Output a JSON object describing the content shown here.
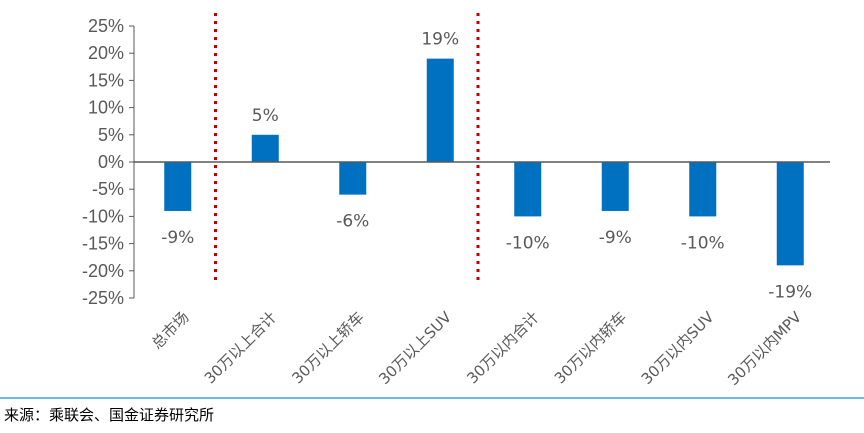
{
  "chart_data": {
    "type": "bar",
    "categories": [
      "总市场",
      "30万以上合计",
      "30万以上轿车",
      "30万以上SUV",
      "30万以内合计",
      "30万以内轿车",
      "30万以内SUV",
      "30万以内MPV"
    ],
    "series": [
      {
        "values": [
          -9,
          5,
          -6,
          19,
          -10,
          -9,
          -10,
          -19
        ],
        "labels": [
          "-9%",
          "5%",
          "-6%",
          "19%",
          "-10%",
          "-9%",
          "-10%",
          "-19%"
        ]
      }
    ],
    "ylim": [
      -25,
      25
    ],
    "yticks": [
      25,
      20,
      15,
      10,
      5,
      0,
      -5,
      -10,
      -15,
      -20,
      -25
    ],
    "ytick_labels": [
      "25%",
      "20%",
      "15%",
      "10%",
      "5%",
      "0%",
      "-5%",
      "-10%",
      "-15%",
      "-20%",
      "-25%"
    ],
    "dividers_after_category_index": [
      0,
      3
    ],
    "grid": false,
    "bar_color": "#0070C0",
    "divider_color": "#C00000"
  },
  "source": "来源：乘联会、国金证券研究所",
  "colors": {
    "rule": "#41A4E0",
    "axis": "#595959"
  }
}
